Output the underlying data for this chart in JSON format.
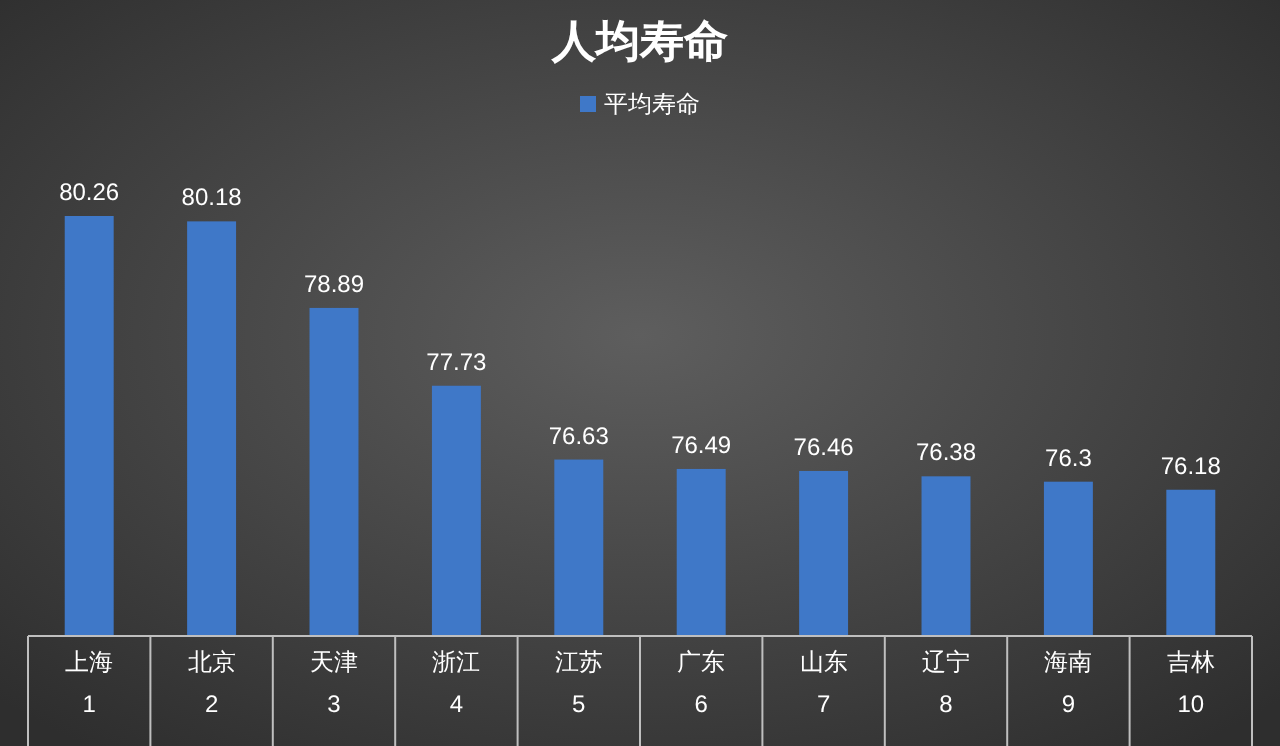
{
  "chart_data": {
    "type": "bar",
    "title": "人均寿命",
    "categories": [
      "上海\n1",
      "北京\n2",
      "天津\n3",
      "浙江\n4",
      "江苏\n5",
      "广东\n6",
      "山东\n7",
      "辽宁\n8",
      "海南\n9",
      "吉林\n10"
    ],
    "series": [
      {
        "name": "平均寿命",
        "color": "#3f78c8",
        "values": [
          80.26,
          80.18,
          78.89,
          77.73,
          76.63,
          76.49,
          76.46,
          76.38,
          76.3,
          76.18
        ]
      }
    ],
    "ylim": [
      74,
      80.26
    ],
    "data_labels": true,
    "legend": "top"
  }
}
